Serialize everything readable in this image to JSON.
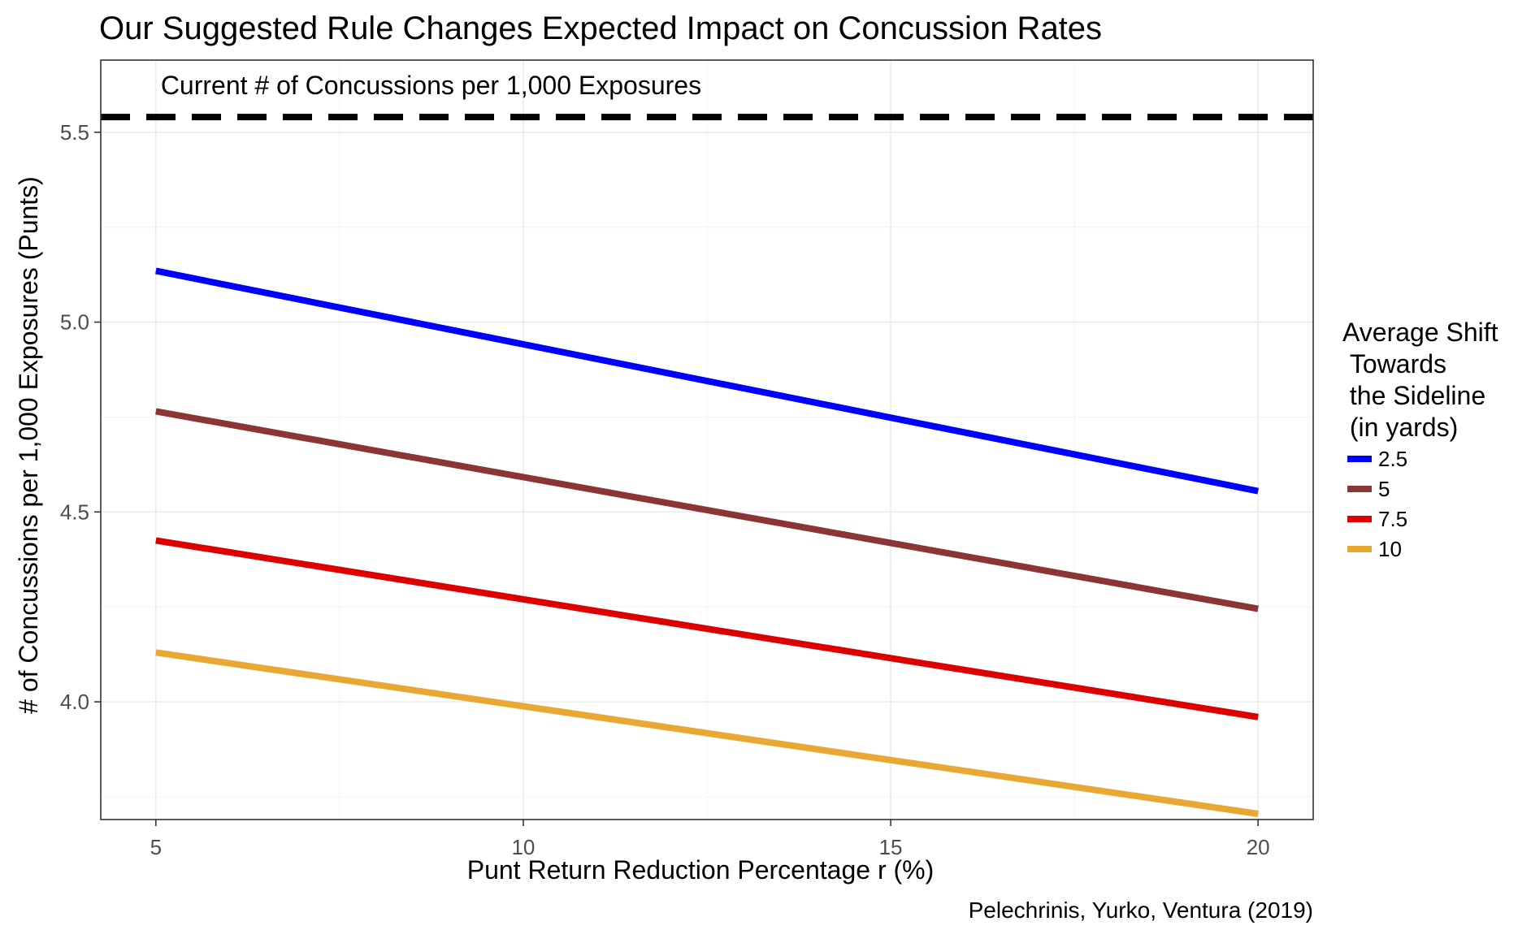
{
  "chart_data": {
    "type": "line",
    "title": "Our Suggested Rule Changes Expected Impact on Concussion Rates",
    "xlabel": "Punt Return Reduction Percentage r (%)",
    "ylabel": "# of Concussions per 1,000 Exposures (Punts)",
    "caption": "Pelechrinis, Yurko, Ventura (2019)",
    "x": [
      5,
      20
    ],
    "xlim": [
      4.25,
      20.75
    ],
    "ylim": [
      3.69,
      5.69
    ],
    "x_ticks": [
      "5",
      "10",
      "15",
      "20"
    ],
    "x_tick_values": [
      5,
      10,
      15,
      20
    ],
    "y_ticks": [
      "4.0",
      "4.5",
      "5.0",
      "5.5"
    ],
    "y_tick_values": [
      4.0,
      4.5,
      5.0,
      5.5
    ],
    "grid": true,
    "legend": {
      "title_lines": [
        "Average Shift",
        " Towards",
        " the Sideline",
        " (in yards)"
      ],
      "placement": "right"
    },
    "series": [
      {
        "name": "2.5",
        "color": "#0000ff",
        "values": [
          5.135,
          4.555
        ]
      },
      {
        "name": "5",
        "color": "#8b3535",
        "values": [
          4.765,
          4.245
        ]
      },
      {
        "name": "7.5",
        "color": "#dd0000",
        "values": [
          4.425,
          3.96
        ]
      },
      {
        "name": "10",
        "color": "#e8a833",
        "values": [
          4.13,
          3.705
        ]
      }
    ],
    "reference_line": {
      "value": 5.54,
      "style": "dashed",
      "color": "#000000",
      "label": "Current # of Concussions per 1,000 Exposures"
    }
  }
}
